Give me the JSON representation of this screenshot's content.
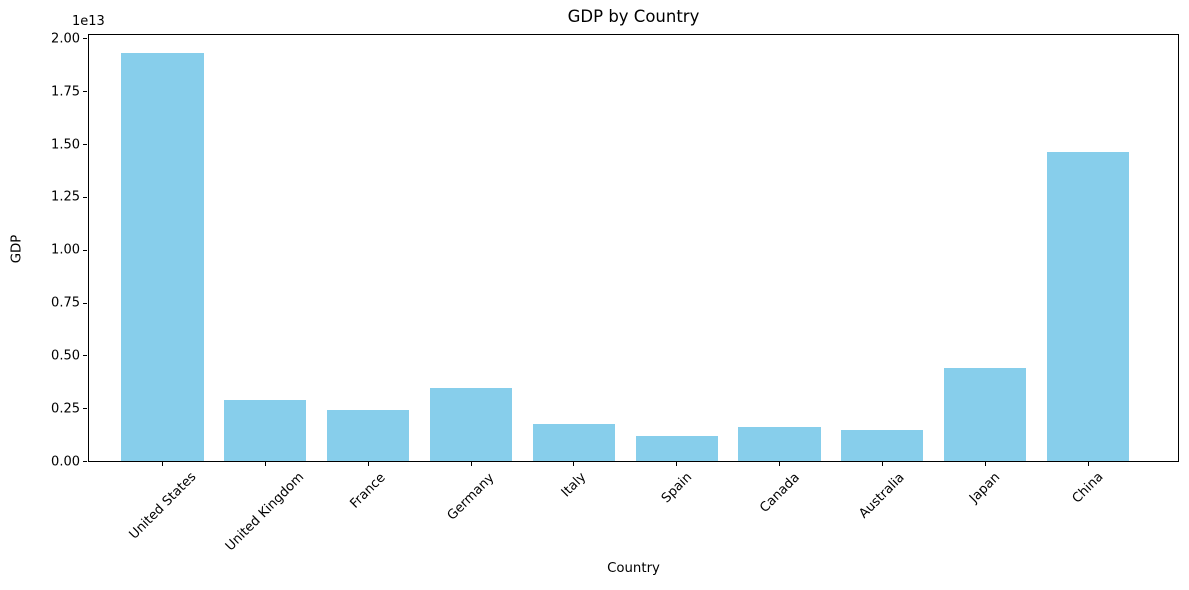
{
  "figure": {
    "background_color": "#ffffff",
    "spine_color": "#000000",
    "text_color": "#000000"
  },
  "chart_data": {
    "type": "bar",
    "title": "GDP by Country",
    "xlabel": "Country",
    "ylabel": "GDP",
    "offset_text": "1e13",
    "categories": [
      "United States",
      "United Kingdom",
      "France",
      "Germany",
      "Italy",
      "Spain",
      "Canada",
      "Australia",
      "Japan",
      "China"
    ],
    "values": [
      19294482071552,
      2891615567872,
      2411255037952,
      3435817336832,
      1745433788416,
      1181205135360,
      1607402389504,
      1490967855104,
      4380756541440,
      14631844184064
    ],
    "bar_color": "#87CEEB",
    "bar_width": 0.8,
    "ylim": [
      0,
      20164000000000
    ],
    "xlim": [
      -0.715,
      9.875
    ],
    "yticks": [
      0,
      2500000000000,
      5000000000000,
      7500000000000,
      10000000000000,
      12500000000000,
      15000000000000,
      17500000000000,
      20000000000000
    ],
    "ytick_labels": [
      "0.00",
      "0.25",
      "0.50",
      "0.75",
      "1.00",
      "1.25",
      "1.50",
      "1.75",
      "2.00"
    ],
    "xtick_rotation_deg": 45,
    "grid": false,
    "legend": null
  }
}
